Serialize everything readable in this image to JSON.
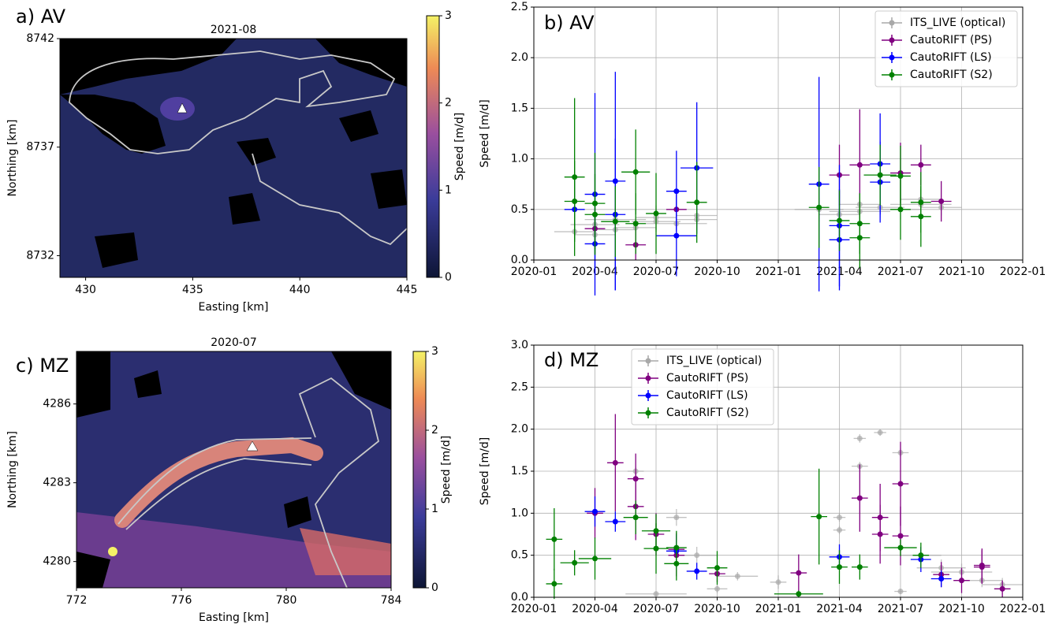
{
  "chart_data": [
    {
      "type": "heatmap",
      "panel_label": "a) AV",
      "title": "2021-08",
      "xlabel": "Easting [km]",
      "ylabel": "Northing [km]",
      "xlim": [
        428.8,
        445
      ],
      "xticks": [
        430,
        435,
        440,
        445
      ],
      "ylim": [
        8731,
        8742
      ],
      "yticks": [
        8732,
        8737,
        8742
      ],
      "clim": [
        0,
        3
      ],
      "cticks": [
        0,
        1,
        2,
        3
      ],
      "clabel": "Speed [m/d]"
    },
    {
      "type": "errorbar",
      "panel_label": "b) AV",
      "ylabel": "Speed [m/d]",
      "xlim": [
        "2020-01",
        "2022-01"
      ],
      "xticks": [
        "2020-01",
        "2020-04",
        "2020-07",
        "2020-10",
        "2021-01",
        "2021-04",
        "2021-07",
        "2021-10",
        "2022-01"
      ],
      "ylim": [
        0,
        2.5
      ],
      "yticks": [
        {
          "value": 0,
          "label": "0.0"
        },
        0.5,
        {
          "value": 1,
          "label": "1.0"
        },
        1.5,
        {
          "value": 2,
          "label": "2.0"
        },
        2.5
      ],
      "grid": true,
      "legend": "upper right",
      "series": [
        {
          "name": "ITS_LIVE (optical)",
          "color": "#a9a9a9",
          "x": [
            "2020-03",
            "2020-04",
            "2020-04",
            "2020-05",
            "2020-05",
            "2020-06",
            "2020-07",
            "2020-07",
            "2020-08",
            "2020-09",
            "2020-09",
            "2021-03",
            "2021-04",
            "2021-05",
            "2021-05",
            "2021-06",
            "2021-07",
            "2021-08",
            "2021-08",
            "2021-09"
          ],
          "values": [
            0.28,
            0.25,
            0.35,
            0.3,
            0.4,
            0.32,
            0.38,
            0.42,
            0.36,
            0.44,
            0.4,
            0.5,
            0.45,
            0.48,
            0.55,
            0.52,
            0.5,
            0.55,
            0.6,
            0.52
          ],
          "yerr": [
            0.1,
            0.08,
            0.12,
            0.1,
            0.1,
            0.08,
            0.1,
            0.12,
            0.1,
            0.08,
            0.1,
            0.12,
            0.1,
            0.1,
            0.12,
            0.1,
            0.1,
            0.12,
            0.1,
            0.08
          ],
          "xerr": [
            1,
            1,
            1.2,
            1,
            1.5,
            1,
            1.2,
            1,
            1.5,
            1,
            1,
            1.2,
            1,
            1.5,
            1,
            1.2,
            1,
            1.5,
            1,
            1
          ]
        },
        {
          "name": "CautoRIFT (PS)",
          "color": "#800080",
          "x": [
            "2020-04",
            "2020-06",
            "2020-08",
            "2021-04",
            "2021-05",
            "2021-07",
            "2021-08",
            "2021-09"
          ],
          "values": [
            0.31,
            0.15,
            0.5,
            0.84,
            0.94,
            0.86,
            0.94,
            0.58
          ],
          "yerr": [
            0.2,
            0.15,
            0.2,
            0.3,
            0.55,
            0.3,
            0.2,
            0.2
          ],
          "xerr": [
            0.5,
            0.5,
            0.5,
            0.5,
            0.5,
            0.5,
            0.5,
            0.5
          ]
        },
        {
          "name": "CautoRIFT (LS)",
          "color": "#0000ff",
          "x": [
            "2020-03",
            "2020-04",
            "2020-04",
            "2020-05",
            "2020-05",
            "2020-08",
            "2020-08",
            "2020-09",
            "2021-03",
            "2021-04",
            "2021-04",
            "2021-06",
            "2021-06"
          ],
          "values": [
            0.5,
            0.16,
            0.65,
            0.78,
            0.45,
            0.24,
            0.68,
            0.91,
            0.75,
            0.34,
            0.2,
            0.95,
            0.77
          ],
          "yerr": [
            0.3,
            0.3,
            1.0,
            1.08,
            0.75,
            0.4,
            0.4,
            0.65,
            1.06,
            0.6,
            0.5,
            0.5,
            0.4
          ],
          "xerr": [
            0.5,
            0.5,
            0.5,
            0.5,
            0.5,
            1,
            0.5,
            0.8,
            0.5,
            0.5,
            0.5,
            0.5,
            0.5
          ]
        },
        {
          "name": "CautoRIFT (S2)",
          "color": "#008000",
          "x": [
            "2020-03",
            "2020-03",
            "2020-04",
            "2020-04",
            "2020-05",
            "2020-06",
            "2020-06",
            "2020-07",
            "2020-09",
            "2021-03",
            "2021-04",
            "2021-05",
            "2021-05",
            "2021-06",
            "2021-07",
            "2021-07",
            "2021-08",
            "2021-08"
          ],
          "values": [
            0.82,
            0.58,
            0.56,
            0.45,
            0.38,
            0.36,
            0.87,
            0.46,
            0.57,
            0.52,
            0.39,
            0.36,
            0.22,
            0.84,
            0.5,
            0.83,
            0.43,
            0.57
          ],
          "yerr": [
            0.78,
            0.4,
            0.5,
            0.4,
            0.35,
            0.3,
            0.42,
            0.4,
            0.4,
            0.4,
            0.3,
            0.3,
            0.3,
            0.3,
            0.3,
            0.3,
            0.3,
            0.3
          ],
          "xerr": [
            0.5,
            0.5,
            0.5,
            0.5,
            0.7,
            0.5,
            0.7,
            0.5,
            0.5,
            0.5,
            0.5,
            0.5,
            0.5,
            0.8,
            0.5,
            0.5,
            0.5,
            0.5
          ]
        }
      ]
    },
    {
      "type": "heatmap",
      "panel_label": "c) MZ",
      "title": "2020-07",
      "xlabel": "Easting [km]",
      "ylabel": "Northing [km]",
      "xlim": [
        772,
        784
      ],
      "xticks": [
        772,
        776,
        780,
        784
      ],
      "ylim": [
        4279,
        4288
      ],
      "yticks": [
        4280,
        4283,
        4286
      ],
      "clim": [
        0,
        3
      ],
      "cticks": [
        0,
        1,
        2,
        3
      ],
      "clabel": "Speed [m/d]"
    },
    {
      "type": "errorbar",
      "panel_label": "d) MZ",
      "ylabel": "Speed [m/d]",
      "xlim": [
        "2020-01",
        "2022-01"
      ],
      "xticks": [
        "2020-01",
        "2020-04",
        "2020-07",
        "2020-10",
        "2021-01",
        "2021-04",
        "2021-07",
        "2021-10",
        "2022-01"
      ],
      "ylim": [
        0,
        3
      ],
      "yticks": [
        {
          "value": 0,
          "label": "0.0"
        },
        0.5,
        {
          "value": 1,
          "label": "1.0"
        },
        1.5,
        {
          "value": 2,
          "label": "2.0"
        },
        2.5,
        {
          "value": 3,
          "label": "3.0"
        }
      ],
      "grid": true,
      "legend": "upper center",
      "series": [
        {
          "name": "ITS_LIVE (optical)",
          "color": "#a9a9a9",
          "x": [
            "2020-06",
            "2020-07",
            "2020-08",
            "2020-09",
            "2020-10",
            "2020-11",
            "2021-01",
            "2021-04",
            "2021-04",
            "2021-05",
            "2021-05",
            "2021-06",
            "2021-07",
            "2021-07",
            "2021-08",
            "2021-09",
            "2021-10",
            "2021-11",
            "2021-12"
          ],
          "values": [
            1.5,
            0.04,
            0.95,
            0.5,
            0.1,
            0.25,
            0.18,
            0.95,
            0.8,
            1.56,
            1.89,
            1.96,
            1.72,
            0.07,
            0.5,
            0.35,
            0.3,
            0.2,
            0.15
          ],
          "yerr": [
            0.05,
            0.03,
            0.1,
            0.1,
            0.05,
            0.05,
            0.08,
            0.05,
            0.05,
            0.05,
            0.05,
            0.04,
            0.05,
            0.03,
            0.1,
            0.1,
            0.1,
            0.08,
            0.08
          ],
          "xerr": [
            0.4,
            1.5,
            0.5,
            1,
            0.5,
            1,
            0.4,
            0.3,
            0.3,
            0.4,
            0.3,
            0.3,
            0.4,
            0.3,
            1,
            1.2,
            1.5,
            1,
            1
          ]
        },
        {
          "name": "CautoRIFT (PS)",
          "color": "#800080",
          "x": [
            "2020-04",
            "2020-05",
            "2020-06",
            "2020-06",
            "2020-07",
            "2020-08",
            "2020-08",
            "2020-10",
            "2021-02",
            "2021-05",
            "2021-06",
            "2021-06",
            "2021-07",
            "2021-07",
            "2021-09",
            "2021-10",
            "2021-11",
            "2021-11",
            "2021-12"
          ],
          "values": [
            1.0,
            1.6,
            1.08,
            1.41,
            0.75,
            0.57,
            0.5,
            0.28,
            0.29,
            1.18,
            0.75,
            0.95,
            1.35,
            0.73,
            0.27,
            0.2,
            0.36,
            0.38,
            0.1
          ],
          "yerr": [
            0.3,
            0.58,
            0.4,
            0.3,
            0.25,
            0.2,
            0.25,
            0.1,
            0.22,
            0.4,
            0.35,
            0.4,
            0.5,
            0.35,
            0.15,
            0.15,
            0.2,
            0.2,
            0.1
          ],
          "xerr": [
            0.4,
            0.4,
            0.4,
            0.4,
            0.4,
            0.4,
            0.4,
            0.4,
            0.4,
            0.4,
            0.4,
            0.4,
            0.4,
            0.4,
            0.4,
            0.4,
            0.4,
            0.4,
            0.4
          ]
        },
        {
          "name": "CautoRIFT (LS)",
          "color": "#0000ff",
          "x": [
            "2020-04",
            "2020-05",
            "2020-08",
            "2020-09",
            "2021-04",
            "2021-08",
            "2021-09"
          ],
          "values": [
            1.02,
            0.9,
            0.55,
            0.31,
            0.48,
            0.45,
            0.22
          ],
          "yerr": [
            0.18,
            0.12,
            0.2,
            0.1,
            0.15,
            0.15,
            0.1
          ],
          "xerr": [
            0.5,
            0.5,
            0.5,
            0.5,
            0.5,
            0.5,
            0.5
          ]
        },
        {
          "name": "CautoRIFT (S2)",
          "color": "#008000",
          "x": [
            "2020-02",
            "2020-02",
            "2020-03",
            "2020-04",
            "2020-06",
            "2020-07",
            "2020-07",
            "2020-08",
            "2020-08",
            "2020-10",
            "2021-02",
            "2021-03",
            "2021-04",
            "2021-05",
            "2021-07",
            "2021-08"
          ],
          "values": [
            0.16,
            0.69,
            0.41,
            0.46,
            0.95,
            0.58,
            0.79,
            0.4,
            0.59,
            0.35,
            0.04,
            0.96,
            0.36,
            0.36,
            0.59,
            0.5
          ],
          "yerr": [
            0.18,
            0.37,
            0.15,
            0.25,
            0.2,
            0.3,
            0.2,
            0.2,
            0.2,
            0.2,
            0.04,
            0.57,
            0.2,
            0.15,
            0.1,
            0.15
          ],
          "xerr": [
            0.4,
            0.4,
            0.7,
            0.8,
            0.6,
            0.6,
            0.7,
            0.6,
            0.5,
            0.5,
            1.2,
            0.4,
            0.4,
            0.4,
            0.8,
            0.4
          ]
        }
      ]
    }
  ]
}
